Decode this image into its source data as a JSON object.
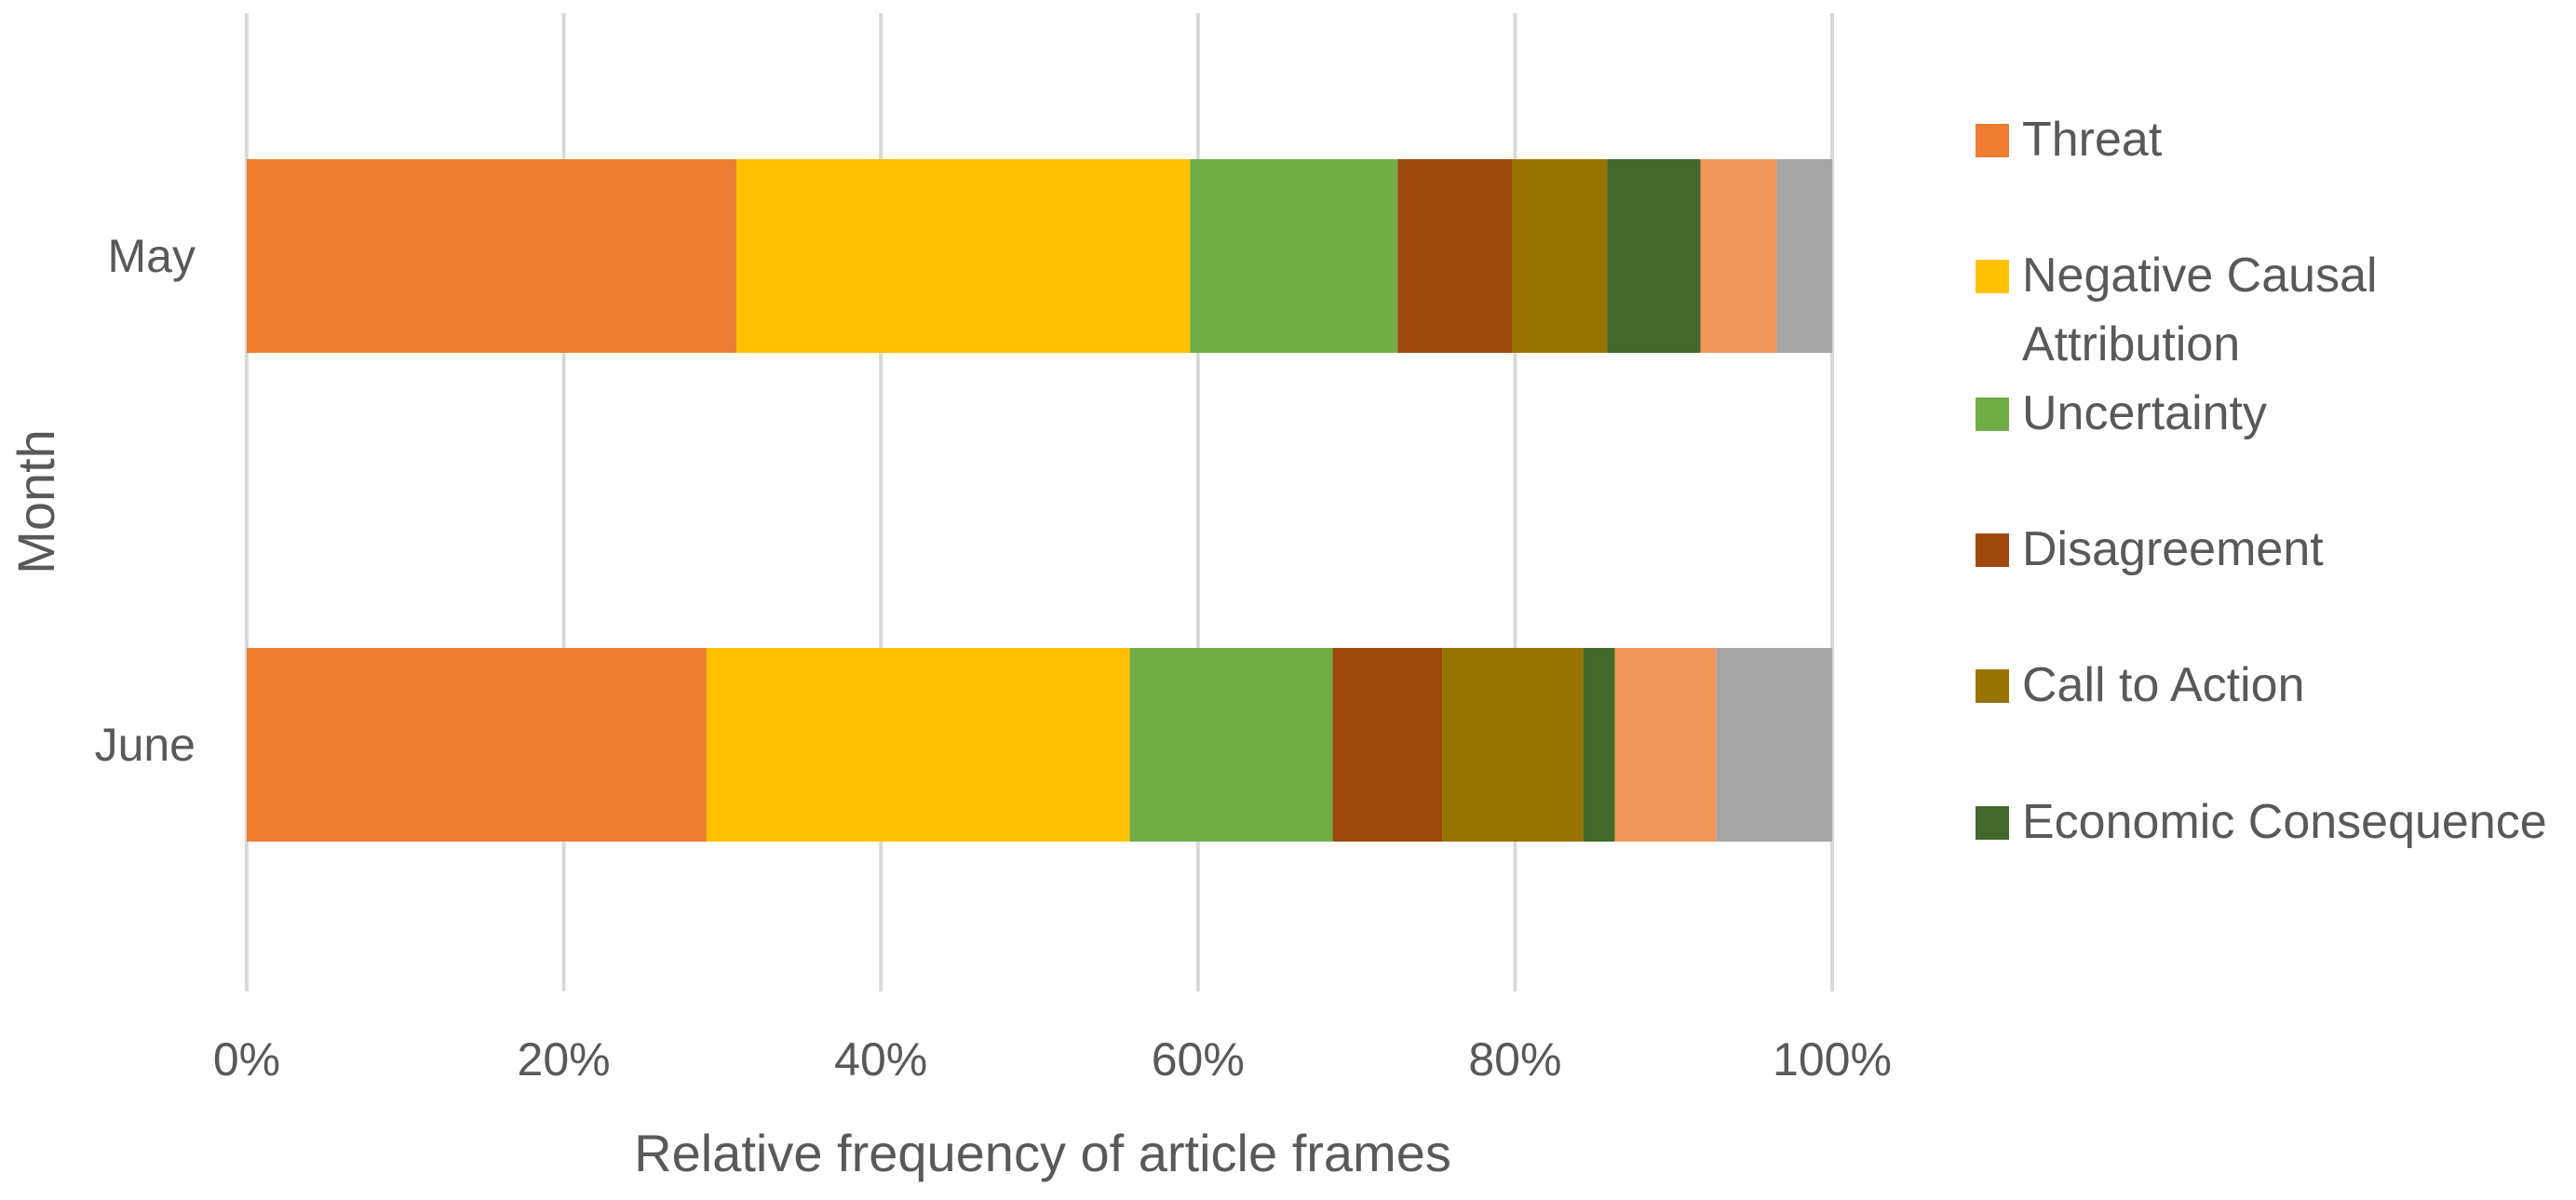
{
  "chart_data": {
    "type": "bar",
    "orientation": "horizontal",
    "stacked": "percent",
    "categories": [
      "May",
      "June"
    ],
    "series": [
      {
        "name": "Threat",
        "color": "#ED7D31",
        "values": [
          30.9,
          29.0
        ]
      },
      {
        "name": "Negative Causal Attribution",
        "color": "#FFC000",
        "values": [
          28.6,
          26.7
        ]
      },
      {
        "name": "Uncertainty",
        "color": "#70AD47",
        "values": [
          13.1,
          12.8
        ]
      },
      {
        "name": "Disagreement",
        "color": "#9E480E",
        "values": [
          7.2,
          6.9
        ]
      },
      {
        "name": "Call to Action",
        "color": "#997300",
        "values": [
          6.0,
          8.9
        ]
      },
      {
        "name": "Economic Consequence",
        "color": "#43682B",
        "values": [
          5.9,
          2.0
        ]
      },
      {
        "name": "",
        "color": "#F1975A",
        "values": [
          4.8,
          6.4
        ]
      },
      {
        "name": "",
        "color": "#A5A5A5",
        "values": [
          3.5,
          7.3
        ]
      }
    ],
    "xlabel": "Relative frequency of article frames",
    "ylabel": "Month",
    "xlim": [
      0,
      100
    ],
    "xticks": [
      "0%",
      "20%",
      "40%",
      "60%",
      "80%",
      "100%"
    ],
    "grid": "vertical",
    "legend_position": "right"
  }
}
